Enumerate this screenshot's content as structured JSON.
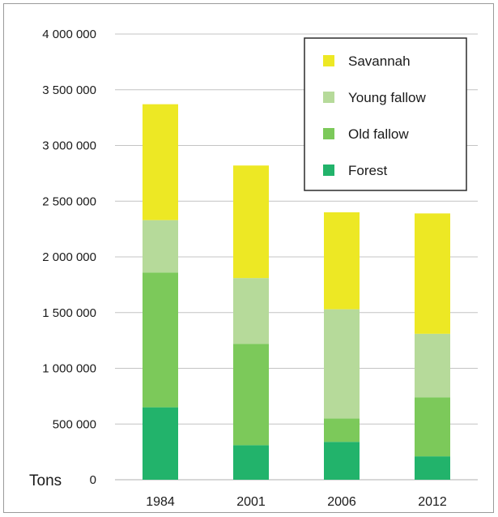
{
  "chart_data": {
    "type": "bar",
    "stacked": true,
    "categories": [
      "1984",
      "2001",
      "2006",
      "2012"
    ],
    "series": [
      {
        "name": "Forest",
        "values": [
          650000,
          310000,
          340000,
          210000
        ],
        "color": "#22b36b"
      },
      {
        "name": "Old fallow",
        "values": [
          1210000,
          910000,
          210000,
          530000
        ],
        "color": "#7cc95a"
      },
      {
        "name": "Young fallow",
        "values": [
          470000,
          590000,
          980000,
          570000
        ],
        "color": "#b6da9a"
      },
      {
        "name": "Savannah",
        "values": [
          1040000,
          1010000,
          870000,
          1080000
        ],
        "color": "#ede824"
      }
    ],
    "yticks": [
      "0",
      "500 000",
      "1 000 000",
      "1 500 000",
      "2 000 000",
      "2 500 000",
      "3 000 000",
      "3 500 000",
      "4 000 000"
    ],
    "ylim": [
      0,
      4000000
    ],
    "ylabel": "Tons",
    "xlabel": "",
    "title": "",
    "grid": true,
    "legend_position": "top-right",
    "legend_order": [
      "Savannah",
      "Young fallow",
      "Old fallow",
      "Forest"
    ]
  }
}
